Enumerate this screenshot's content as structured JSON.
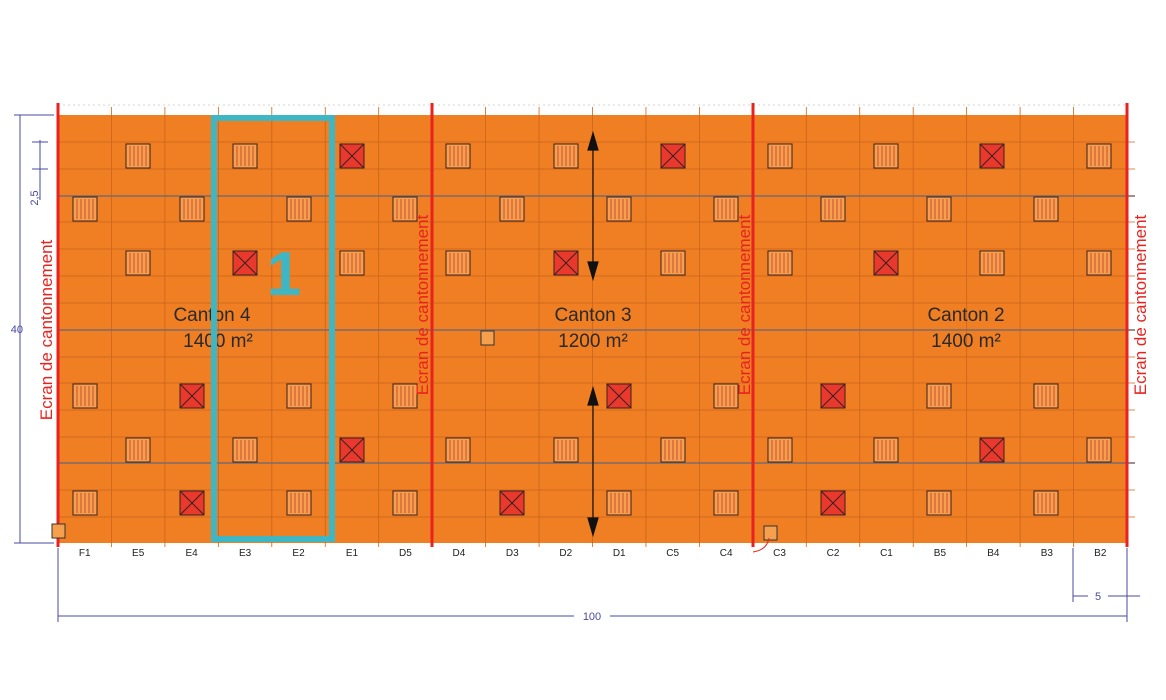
{
  "plan": {
    "colors": {
      "floor": "#f07e22",
      "screen_line": "#e8231f",
      "screen_text": "#e8231f",
      "highlight": "#3fb6c3",
      "dimension": "#4a4aa0",
      "smoke_vent_fill": "#e8392c",
      "skylight_fill": "#f6a04e",
      "grid": "#c9651c"
    },
    "cantons": [
      {
        "name": "Canton 4",
        "area": "1400 m²"
      },
      {
        "name": "Canton 3",
        "area": "1200 m²"
      },
      {
        "name": "Canton 2",
        "area": "1400 m²"
      }
    ],
    "screen_label": "Ecran de cantonnement",
    "zone_number": "1",
    "column_labels": [
      "F1",
      "E5",
      "E4",
      "E3",
      "E2",
      "E1",
      "D5",
      "D4",
      "D3",
      "D2",
      "D1",
      "C5",
      "C4",
      "C3",
      "C2",
      "C1",
      "B5",
      "B4",
      "B3",
      "B2"
    ],
    "dimensions": {
      "width": "100",
      "depth": "40",
      "vent_spacing": "2,5",
      "bay": "5"
    }
  }
}
